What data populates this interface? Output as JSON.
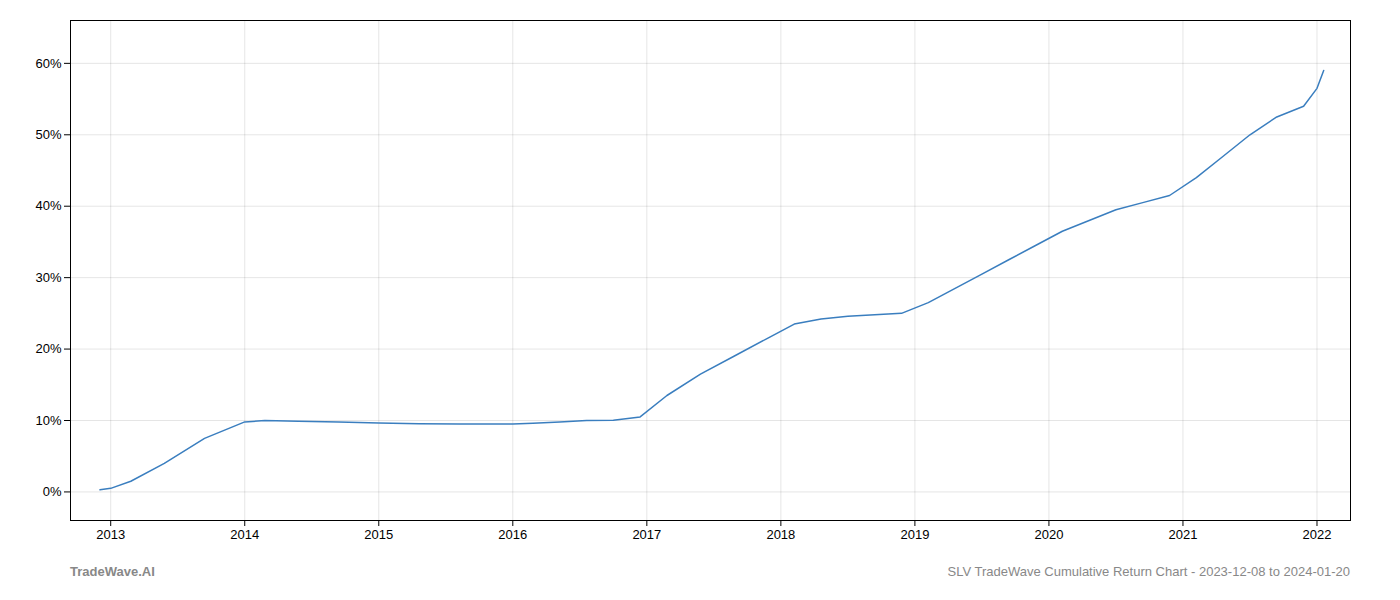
{
  "chart_data": {
    "type": "line",
    "x": [
      2012.92,
      2013.0,
      2013.15,
      2013.4,
      2013.7,
      2014.0,
      2014.15,
      2014.4,
      2014.7,
      2015.0,
      2015.3,
      2015.6,
      2015.9,
      2016.0,
      2016.15,
      2016.35,
      2016.55,
      2016.75,
      2016.95,
      2017.15,
      2017.4,
      2017.65,
      2017.9,
      2018.1,
      2018.3,
      2018.5,
      2018.7,
      2018.9,
      2019.1,
      2019.3,
      2019.5,
      2019.7,
      2019.9,
      2020.1,
      2020.3,
      2020.5,
      2020.7,
      2020.9,
      2021.1,
      2021.3,
      2021.5,
      2021.7,
      2021.9,
      2022.0,
      2022.05
    ],
    "values": [
      0.3,
      0.5,
      1.5,
      4.0,
      7.5,
      9.8,
      10.0,
      9.9,
      9.8,
      9.65,
      9.55,
      9.5,
      9.5,
      9.5,
      9.6,
      9.8,
      10.0,
      10.05,
      10.5,
      13.5,
      16.5,
      19.0,
      21.5,
      23.5,
      24.2,
      24.6,
      24.8,
      25.0,
      26.5,
      28.5,
      30.5,
      32.5,
      34.5,
      36.5,
      38.0,
      39.5,
      40.5,
      41.5,
      44.0,
      47.0,
      50.0,
      52.5,
      54.0,
      56.5,
      59.0
    ],
    "color": "#3a7ebf",
    "xlim": [
      2012.7,
      2022.25
    ],
    "ylim": [
      -4,
      66
    ],
    "xticks": [
      2013,
      2014,
      2015,
      2016,
      2017,
      2018,
      2019,
      2020,
      2021,
      2022
    ],
    "yticks": [
      {
        "value": 0,
        "label": "0%"
      },
      {
        "value": 10,
        "label": "10%"
      },
      {
        "value": 20,
        "label": "20%"
      },
      {
        "value": 30,
        "label": "30%"
      },
      {
        "value": 40,
        "label": "40%"
      },
      {
        "value": 50,
        "label": "50%"
      },
      {
        "value": 60,
        "label": "60%"
      }
    ],
    "grid": true,
    "annotations": [
      "TradeWave.AI",
      "SLV TradeWave Cumulative Return Chart - 2023-12-08 to 2024-01-20"
    ]
  }
}
